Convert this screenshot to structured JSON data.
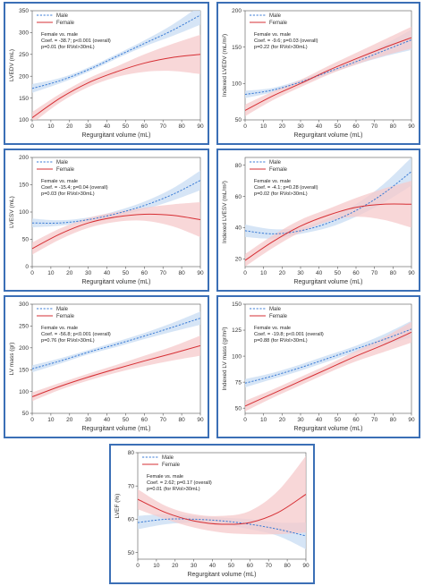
{
  "colors": {
    "male": "#3a7bd5",
    "male_band": "#cfe0f5",
    "female": "#d62f34",
    "female_band": "#f6c9cb",
    "frame": "#3b6fb6"
  },
  "chart_data": [
    {
      "type": "line",
      "xlabel": "Regurgitant volume (mL)",
      "ylabel": "LVEDV (mL)",
      "xlim": [
        0,
        90
      ],
      "ylim": [
        100,
        350
      ],
      "xticks": [
        "0",
        "10",
        "20",
        "30",
        "40",
        "50",
        "60",
        "70",
        "80",
        "90"
      ],
      "yticks": [
        "100",
        "150",
        "200",
        "250",
        "300",
        "350"
      ],
      "legend": [
        "Male",
        "Female"
      ],
      "annotation": [
        "Female vs. male",
        "Coef. = -38.7; p<0.001 (overall)",
        "p=0.01 (for RVol>30mL)"
      ],
      "x": [
        0,
        15,
        30,
        45,
        60,
        75,
        90
      ],
      "series": [
        {
          "name": "Male",
          "values": [
            172,
            190,
            215,
            245,
            275,
            305,
            340
          ],
          "lower": [
            162,
            184,
            210,
            240,
            268,
            292,
            318
          ],
          "upper": [
            182,
            196,
            220,
            250,
            282,
            318,
            362
          ]
        },
        {
          "name": "Female",
          "values": [
            105,
            150,
            185,
            210,
            230,
            243,
            250
          ],
          "lower": [
            92,
            140,
            175,
            198,
            210,
            212,
            205
          ],
          "upper": [
            118,
            160,
            195,
            222,
            250,
            274,
            295
          ]
        }
      ]
    },
    {
      "type": "line",
      "xlabel": "Regurgitant volume (mL)",
      "ylabel": "Indexed LVEDV (mL/m²)",
      "xlim": [
        0,
        90
      ],
      "ylim": [
        50,
        200
      ],
      "xticks": [
        "0",
        "10",
        "20",
        "30",
        "40",
        "50",
        "60",
        "70",
        "80",
        "90"
      ],
      "yticks": [
        "50",
        "100",
        "150",
        "200"
      ],
      "legend": [
        "Male",
        "Female"
      ],
      "annotation": [
        "Female vs. male",
        "Coef. = -9.6; p=0.03 (overall)",
        "p=0.22 (for RVol>30mL)"
      ],
      "x": [
        0,
        15,
        30,
        45,
        60,
        75,
        90
      ],
      "series": [
        {
          "name": "Male",
          "values": [
            85,
            91,
            102,
            116,
            130,
            145,
            160
          ],
          "lower": [
            80,
            88,
            99,
            113,
            126,
            137,
            146
          ],
          "upper": [
            90,
            94,
            105,
            119,
            134,
            153,
            174
          ]
        },
        {
          "name": "Female",
          "values": [
            63,
            83,
            100,
            118,
            134,
            149,
            163
          ],
          "lower": [
            55,
            77,
            95,
            112,
            126,
            138,
            148
          ],
          "upper": [
            71,
            89,
            105,
            124,
            142,
            160,
            178
          ]
        }
      ]
    },
    {
      "type": "line",
      "xlabel": "Regurgitant volume (mL)",
      "ylabel": "LVESV (mL)",
      "xlim": [
        0,
        90
      ],
      "ylim": [
        0,
        200
      ],
      "xticks": [
        "0",
        "10",
        "20",
        "30",
        "40",
        "50",
        "60",
        "70",
        "80",
        "90"
      ],
      "yticks": [
        "0",
        "50",
        "100",
        "150",
        "200"
      ],
      "legend": [
        "Male",
        "Female"
      ],
      "annotation": [
        "Female vs. male",
        "Coef. = -15.4; p=0.04 (overall)",
        "p=0.03 (for RVol>30mL)"
      ],
      "x": [
        0,
        15,
        30,
        45,
        60,
        75,
        90
      ],
      "series": [
        {
          "name": "Male",
          "values": [
            80,
            80,
            86,
            97,
            112,
            132,
            158
          ],
          "lower": [
            72,
            75,
            82,
            92,
            105,
            121,
            140
          ],
          "upper": [
            88,
            85,
            90,
            102,
            119,
            143,
            176
          ]
        },
        {
          "name": "Female",
          "values": [
            33,
            60,
            80,
            91,
            96,
            94,
            86
          ],
          "lower": [
            22,
            50,
            71,
            82,
            84,
            74,
            54
          ],
          "upper": [
            44,
            70,
            89,
            100,
            108,
            114,
            118
          ]
        }
      ]
    },
    {
      "type": "line",
      "xlabel": "Regurgitant volume (mL)",
      "ylabel": "Indexed LVESV (mL/m²)",
      "xlim": [
        0,
        90
      ],
      "ylim": [
        15,
        85
      ],
      "xticks": [
        "0",
        "10",
        "20",
        "30",
        "40",
        "50",
        "60",
        "70",
        "80",
        "90"
      ],
      "yticks": [
        "20",
        "40",
        "60",
        "80"
      ],
      "legend": [
        "Male",
        "Female"
      ],
      "annotation": [
        "Female vs. male",
        "Coef. = -4.1; p=0.28 (overall)",
        "p=0.02 (for RVol>30mL)"
      ],
      "x": [
        0,
        15,
        30,
        45,
        60,
        75,
        90
      ],
      "series": [
        {
          "name": "Male",
          "values": [
            38,
            36,
            38,
            43,
            51,
            62,
            76
          ],
          "lower": [
            34,
            33,
            36,
            40,
            47,
            56,
            67
          ],
          "upper": [
            42,
            39,
            40,
            46,
            55,
            68,
            85
          ]
        },
        {
          "name": "Female",
          "values": [
            19,
            31,
            41,
            48,
            53,
            55,
            55
          ],
          "lower": [
            15,
            27,
            37,
            44,
            47,
            45,
            40
          ],
          "upper": [
            23,
            35,
            45,
            52,
            59,
            65,
            70
          ]
        }
      ]
    },
    {
      "type": "line",
      "xlabel": "Regurgitant volume (mL)",
      "ylabel": "LV mass (gr)",
      "xlim": [
        0,
        90
      ],
      "ylim": [
        50,
        300
      ],
      "xticks": [
        "0",
        "10",
        "20",
        "30",
        "40",
        "50",
        "60",
        "70",
        "80",
        "90"
      ],
      "yticks": [
        "50",
        "100",
        "150",
        "200",
        "250",
        "300"
      ],
      "legend": [
        "Male",
        "Female"
      ],
      "annotation": [
        "Female vs. male",
        "Coef. = -56.8; p<0.001 (overall)",
        "p=0.76 (for RVol>30mL)"
      ],
      "x": [
        0,
        15,
        30,
        45,
        60,
        75,
        90
      ],
      "series": [
        {
          "name": "Male",
          "values": [
            152,
            170,
            190,
            208,
            227,
            247,
            268
          ],
          "lower": [
            144,
            164,
            185,
            202,
            220,
            237,
            253
          ],
          "upper": [
            160,
            176,
            195,
            214,
            234,
            257,
            283
          ]
        },
        {
          "name": "Female",
          "values": [
            88,
            112,
            133,
            152,
            170,
            187,
            205
          ],
          "lower": [
            78,
            104,
            125,
            143,
            158,
            171,
            182
          ],
          "upper": [
            98,
            120,
            141,
            161,
            182,
            203,
            228
          ]
        }
      ]
    },
    {
      "type": "line",
      "xlabel": "Regurgitant volume (mL)",
      "ylabel": "Indexed LV mass (gr/m²)",
      "xlim": [
        0,
        90
      ],
      "ylim": [
        45,
        150
      ],
      "xticks": [
        "0",
        "10",
        "20",
        "30",
        "40",
        "50",
        "60",
        "70",
        "80",
        "90"
      ],
      "yticks": [
        "50",
        "75",
        "100",
        "125",
        "150"
      ],
      "legend": [
        "Male",
        "Female"
      ],
      "annotation": [
        "Female vs. male",
        "Coef. = -19.8; p<0.001 (overall)",
        "p=0.88 (for RVol>30mL)"
      ],
      "x": [
        0,
        15,
        30,
        45,
        60,
        75,
        90
      ],
      "series": [
        {
          "name": "Male",
          "values": [
            74,
            81,
            89,
            98,
            107,
            116,
            126
          ],
          "lower": [
            70,
            78,
            86,
            95,
            104,
            111,
            118
          ],
          "upper": [
            78,
            84,
            92,
            101,
            110,
            121,
            134
          ]
        },
        {
          "name": "Female",
          "values": [
            52,
            64,
            76,
            88,
            100,
            111,
            123
          ],
          "lower": [
            47,
            60,
            72,
            84,
            95,
            104,
            113
          ],
          "upper": [
            57,
            68,
            80,
            92,
            105,
            118,
            133
          ]
        }
      ]
    },
    {
      "type": "line",
      "xlabel": "Regurgitant volume (mL)",
      "ylabel": "LVEF (%)",
      "xlim": [
        0,
        90
      ],
      "ylim": [
        48,
        80
      ],
      "xticks": [
        "0",
        "10",
        "20",
        "30",
        "40",
        "50",
        "60",
        "70",
        "80",
        "90"
      ],
      "yticks": [
        "50",
        "60",
        "70",
        "80"
      ],
      "legend": [
        "Male",
        "Female"
      ],
      "annotation": [
        "Female vs. male",
        "Coef. = 2.62; p=0.17 (overall)",
        "p=0.01 (for RVol>30mL)"
      ],
      "x": [
        0,
        15,
        30,
        45,
        60,
        75,
        90
      ],
      "series": [
        {
          "name": "Male",
          "values": [
            59,
            60,
            60,
            59.5,
            58.5,
            57,
            55
          ],
          "lower": [
            57,
            58.5,
            59,
            58.5,
            57,
            55,
            51
          ],
          "upper": [
            61,
            61.5,
            61,
            60.5,
            60,
            59,
            59
          ]
        },
        {
          "name": "Female",
          "values": [
            66,
            62,
            59.5,
            58.5,
            59,
            62,
            67.5
          ],
          "lower": [
            63,
            60,
            57.5,
            56,
            55.5,
            55.5,
            56
          ],
          "upper": [
            69,
            64,
            61.5,
            61,
            62.5,
            68.5,
            79
          ]
        }
      ]
    }
  ]
}
